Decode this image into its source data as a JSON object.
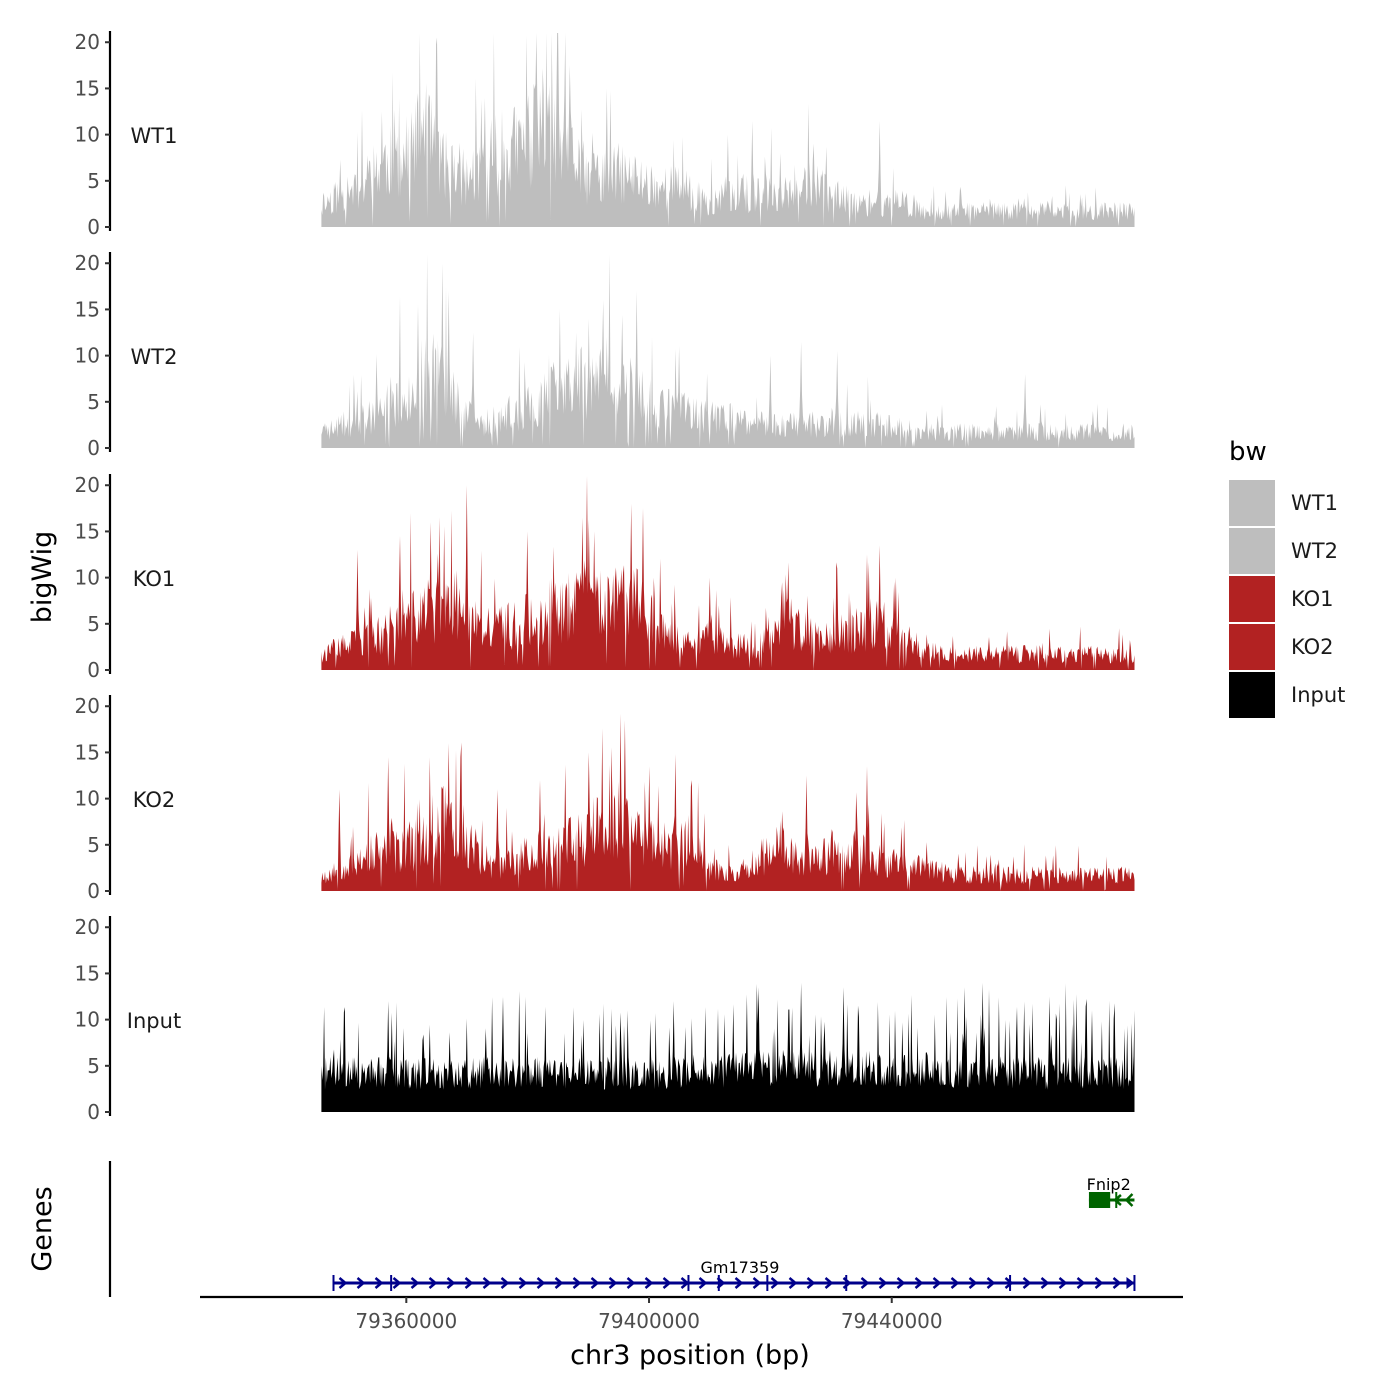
{
  "chart_data": {
    "type": "area",
    "ylabel": "bigWig",
    "xlabel": "chr3 position (bp)",
    "x_range": [
      79326000,
      79488000
    ],
    "x_ticks": [
      79360000,
      79400000,
      79440000
    ],
    "x_tick_labels": [
      "79360000",
      "79400000",
      "79440000"
    ],
    "ylim": [
      0,
      21
    ],
    "y_ticks": [
      0,
      5,
      10,
      15,
      20
    ],
    "y_tick_labels": [
      "0",
      "5",
      "10",
      "15",
      "20"
    ],
    "legend": {
      "title": "bw",
      "position": "right",
      "entries": [
        {
          "name": "WT1",
          "color": "#BEBEBE"
        },
        {
          "name": "WT2",
          "color": "#BEBEBE"
        },
        {
          "name": "KO1",
          "color": "#B22222"
        },
        {
          "name": "KO2",
          "color": "#B22222"
        },
        {
          "name": "Input",
          "color": "#000000"
        }
      ]
    },
    "data_x_range": [
      79346000,
      79480000
    ],
    "series": [
      {
        "name": "WT1",
        "color": "#BEBEBE",
        "seed": 11,
        "knots": [
          [
            79346000,
            3
          ],
          [
            79352000,
            5
          ],
          [
            79356000,
            8
          ],
          [
            79360000,
            9
          ],
          [
            79363000,
            12
          ],
          [
            79366000,
            8
          ],
          [
            79370000,
            6
          ],
          [
            79374000,
            9
          ],
          [
            79378000,
            10
          ],
          [
            79382000,
            12
          ],
          [
            79386000,
            11
          ],
          [
            79390000,
            6
          ],
          [
            79394000,
            7
          ],
          [
            79398000,
            6
          ],
          [
            79402000,
            5
          ],
          [
            79406000,
            5
          ],
          [
            79410000,
            3
          ],
          [
            79414000,
            4
          ],
          [
            79418000,
            4
          ],
          [
            79422000,
            4
          ],
          [
            79426000,
            6
          ],
          [
            79430000,
            4
          ],
          [
            79434000,
            3
          ],
          [
            79438000,
            3
          ],
          [
            79442000,
            3
          ],
          [
            79446000,
            2
          ],
          [
            79450000,
            2
          ],
          [
            79454000,
            2
          ],
          [
            79460000,
            2
          ],
          [
            79470000,
            2
          ],
          [
            79480000,
            2
          ]
        ],
        "peaks": [
          [
            79365000,
            20.5
          ],
          [
            79387000,
            17.5
          ],
          [
            79382500,
            17.2
          ],
          [
            79393000,
            15
          ],
          [
            79373000,
            14
          ],
          [
            79362000,
            14.5
          ],
          [
            79356000,
            12.5
          ],
          [
            79381000,
            15.5
          ],
          [
            79417000,
            11.5
          ],
          [
            79438000,
            11.5
          ],
          [
            79413000,
            10
          ]
        ]
      },
      {
        "name": "WT2",
        "color": "#BEBEBE",
        "seed": 23,
        "knots": [
          [
            79346000,
            2
          ],
          [
            79350000,
            3
          ],
          [
            79354000,
            4
          ],
          [
            79358000,
            6
          ],
          [
            79362000,
            8
          ],
          [
            79365000,
            11
          ],
          [
            79368000,
            6
          ],
          [
            79372000,
            3
          ],
          [
            79376000,
            4
          ],
          [
            79380000,
            5
          ],
          [
            79384000,
            7
          ],
          [
            79388000,
            8
          ],
          [
            79392000,
            9
          ],
          [
            79396000,
            7
          ],
          [
            79400000,
            6
          ],
          [
            79404000,
            5
          ],
          [
            79408000,
            4
          ],
          [
            79412000,
            4
          ],
          [
            79416000,
            3
          ],
          [
            79420000,
            3
          ],
          [
            79424000,
            3
          ],
          [
            79428000,
            3
          ],
          [
            79432000,
            3
          ],
          [
            79436000,
            3
          ],
          [
            79440000,
            3
          ],
          [
            79444000,
            2
          ],
          [
            79448000,
            2
          ],
          [
            79452000,
            2
          ],
          [
            79460000,
            2
          ],
          [
            79470000,
            2
          ],
          [
            79480000,
            2
          ]
        ],
        "peaks": [
          [
            79366000,
            20
          ],
          [
            79367000,
            17
          ],
          [
            79362000,
            15.5
          ],
          [
            79371000,
            12.5
          ],
          [
            79390000,
            14
          ],
          [
            79388000,
            12.5
          ],
          [
            79398000,
            17
          ],
          [
            79393000,
            12
          ],
          [
            79405000,
            11
          ],
          [
            79425000,
            11.5
          ],
          [
            79420000,
            10
          ],
          [
            79431000,
            10.5
          ],
          [
            79462000,
            8
          ]
        ]
      },
      {
        "name": "KO1",
        "color": "#B22222",
        "seed": 37,
        "knots": [
          [
            79346000,
            2
          ],
          [
            79350000,
            3
          ],
          [
            79354000,
            4
          ],
          [
            79358000,
            5
          ],
          [
            79362000,
            7
          ],
          [
            79366000,
            8
          ],
          [
            79370000,
            6
          ],
          [
            79374000,
            5
          ],
          [
            79378000,
            6
          ],
          [
            79382000,
            7
          ],
          [
            79386000,
            8
          ],
          [
            79390000,
            9
          ],
          [
            79394000,
            8
          ],
          [
            79398000,
            9
          ],
          [
            79402000,
            5
          ],
          [
            79406000,
            3
          ],
          [
            79410000,
            4
          ],
          [
            79414000,
            3
          ],
          [
            79418000,
            3
          ],
          [
            79422000,
            7
          ],
          [
            79426000,
            4
          ],
          [
            79430000,
            5
          ],
          [
            79434000,
            5
          ],
          [
            79438000,
            6
          ],
          [
            79442000,
            4
          ],
          [
            79446000,
            3
          ],
          [
            79450000,
            2
          ],
          [
            79455000,
            2
          ],
          [
            79462000,
            2
          ],
          [
            79470000,
            2
          ],
          [
            79480000,
            2
          ]
        ],
        "peaks": [
          [
            79370000,
            20
          ],
          [
            79364000,
            16
          ],
          [
            79380000,
            15
          ],
          [
            79389000,
            16.5
          ],
          [
            79391000,
            15
          ],
          [
            79397000,
            18
          ],
          [
            79399000,
            17.5
          ],
          [
            79359000,
            14.5
          ],
          [
            79352000,
            13
          ],
          [
            79422000,
            9.5
          ],
          [
            79438000,
            13.5
          ],
          [
            79436000,
            12.5
          ],
          [
            79431000,
            11
          ],
          [
            79410000,
            10
          ]
        ]
      },
      {
        "name": "KO2",
        "color": "#B22222",
        "seed": 53,
        "knots": [
          [
            79346000,
            2
          ],
          [
            79350000,
            3
          ],
          [
            79354000,
            5
          ],
          [
            79358000,
            5
          ],
          [
            79362000,
            6
          ],
          [
            79366000,
            9
          ],
          [
            79370000,
            7
          ],
          [
            79374000,
            3
          ],
          [
            79378000,
            4
          ],
          [
            79382000,
            5
          ],
          [
            79386000,
            6
          ],
          [
            79390000,
            7
          ],
          [
            79394000,
            10
          ],
          [
            79398000,
            7
          ],
          [
            79402000,
            6
          ],
          [
            79406000,
            7
          ],
          [
            79410000,
            3
          ],
          [
            79414000,
            2
          ],
          [
            79418000,
            4
          ],
          [
            79422000,
            6
          ],
          [
            79426000,
            3
          ],
          [
            79430000,
            5
          ],
          [
            79434000,
            5
          ],
          [
            79438000,
            4
          ],
          [
            79442000,
            3
          ],
          [
            79446000,
            3
          ],
          [
            79450000,
            2
          ],
          [
            79455000,
            2
          ],
          [
            79462000,
            2
          ],
          [
            79470000,
            2
          ],
          [
            79480000,
            2
          ]
        ],
        "peaks": [
          [
            79396000,
            18.5
          ],
          [
            79367000,
            16
          ],
          [
            79369000,
            14.5
          ],
          [
            79357000,
            14.5
          ],
          [
            79390000,
            15
          ],
          [
            79400000,
            13.5
          ],
          [
            79407000,
            12
          ],
          [
            79436000,
            13.5
          ],
          [
            79426000,
            12.5
          ],
          [
            79382000,
            12
          ],
          [
            79375000,
            11
          ],
          [
            79349000,
            11
          ]
        ]
      },
      {
        "name": "Input",
        "color": "#000000",
        "seed": 71,
        "knots": [
          [
            79346000,
            4
          ],
          [
            79360000,
            4
          ],
          [
            79380000,
            4
          ],
          [
            79400000,
            4
          ],
          [
            79420000,
            4.5
          ],
          [
            79440000,
            4.5
          ],
          [
            79460000,
            4
          ],
          [
            79480000,
            4
          ]
        ],
        "peaks": [
          [
            79357000,
            12
          ],
          [
            79376000,
            12.5
          ],
          [
            79404000,
            12
          ],
          [
            79418000,
            13.5
          ],
          [
            79425000,
            14
          ],
          [
            79432000,
            13.5
          ],
          [
            79452000,
            13.5
          ],
          [
            79455000,
            14
          ],
          [
            79466000,
            12.5
          ],
          [
            79473000,
            11
          ],
          [
            79480000,
            11
          ]
        ]
      }
    ],
    "genes": [
      {
        "name": "Gm17359",
        "start": 79348000,
        "end": 79480000,
        "strand": "+",
        "color": "#00008B",
        "exons": [
          79348000,
          79357500,
          79406500,
          79411500,
          79419500,
          79432500,
          79459500,
          79480000
        ],
        "row": 1
      },
      {
        "name": "Fnip2",
        "start": 79472500,
        "end": 79480000,
        "strand": "-",
        "color": "#006400",
        "cds": [
          79472500,
          79476000
        ],
        "exons": [
          79477000
        ],
        "row": 0
      }
    ],
    "genes_ylabel": "Genes"
  }
}
